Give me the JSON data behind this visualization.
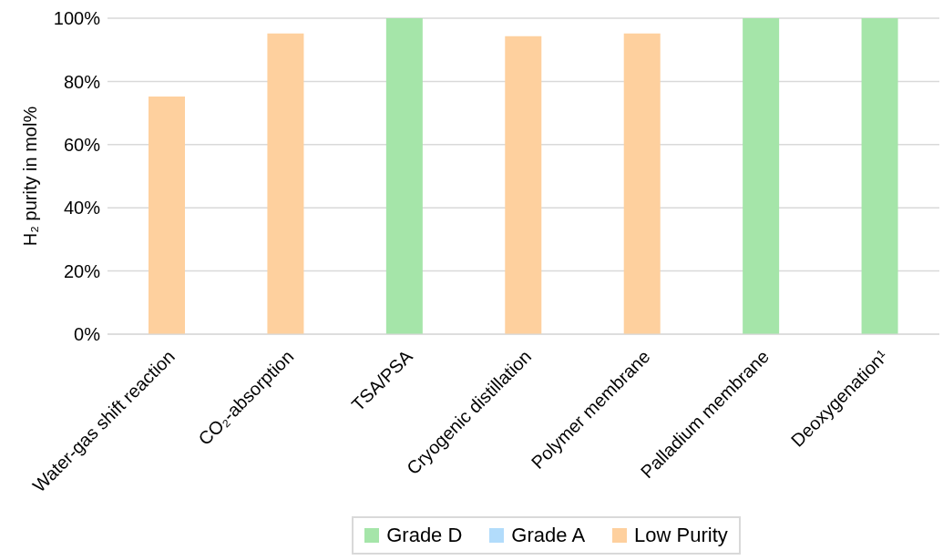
{
  "chart_data": {
    "type": "bar",
    "stacked": true,
    "ylabel": "H₂ purity in mol%",
    "categories": [
      "Water-gas shift reaction",
      "CO₂-absorption",
      "TSA/PSA",
      "Cryogenic distillation",
      "Polymer membrane",
      "Palladium membrane",
      "Deoxygenation¹"
    ],
    "series": [
      {
        "name": "Grade D",
        "color": "#a5e5a9",
        "values": [
          null,
          null,
          100,
          null,
          null,
          100,
          100
        ]
      },
      {
        "name": "Grade A",
        "color": "#b2dcfb",
        "values": [
          null,
          null,
          null,
          null,
          null,
          null,
          null
        ]
      },
      {
        "name": "Low Purity",
        "color": "#fed09e",
        "values": [
          75.2,
          95.2,
          null,
          94.3,
          95.2,
          null,
          null
        ]
      }
    ],
    "ylim": [
      0,
      100
    ],
    "yticks": [
      {
        "value": 0,
        "label": "0%"
      },
      {
        "value": 20,
        "label": "20%"
      },
      {
        "value": 40,
        "label": "40%"
      },
      {
        "value": 60,
        "label": "60%"
      },
      {
        "value": 80,
        "label": "80%"
      },
      {
        "value": 100,
        "label": "100%"
      }
    ],
    "grid": "y",
    "legend": "bottom"
  }
}
